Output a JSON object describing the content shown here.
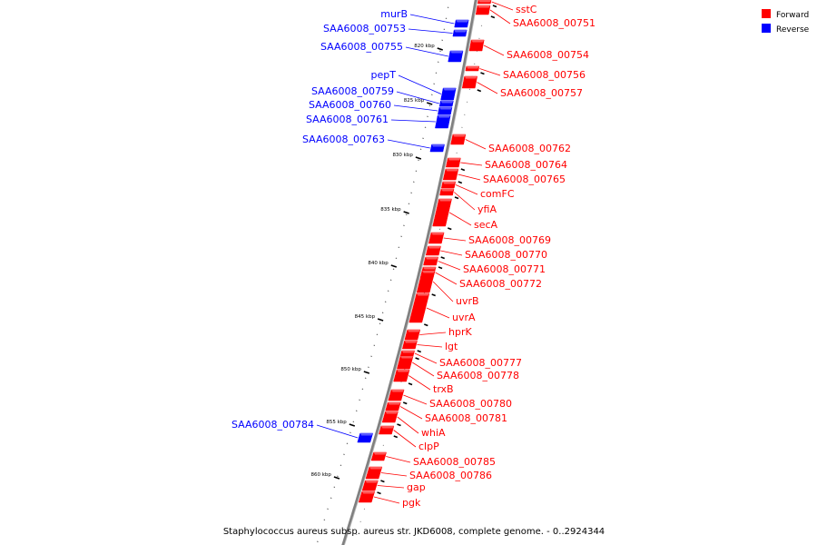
{
  "caption": "Staphylococcus aureus subsp. aureus str. JKD6008, complete genome. - 0..2924344",
  "legend": [
    {
      "label": "Forward",
      "color": "#ff0000"
    },
    {
      "label": "Reverse",
      "color": "#0000ff"
    }
  ],
  "colors": {
    "forward": "#ff0000",
    "reverse": "#0000ff",
    "backbone": "#808080"
  },
  "ticks": [
    "820 kbp",
    "825 kbp",
    "830 kbp",
    "835 kbp",
    "840 kbp",
    "845 kbp",
    "850 kbp",
    "855 kbp",
    "860 kbp"
  ],
  "reverse_genes": [
    {
      "label": "murB"
    },
    {
      "label": "SAA6008_00753"
    },
    {
      "label": "SAA6008_00755"
    },
    {
      "label": "pepT"
    },
    {
      "label": "SAA6008_00759"
    },
    {
      "label": "SAA6008_00760"
    },
    {
      "label": "SAA6008_00761"
    },
    {
      "label": "SAA6008_00763"
    },
    {
      "label": "SAA6008_00784"
    }
  ],
  "forward_genes": [
    {
      "label": "sstC"
    },
    {
      "label": "SAA6008_00751"
    },
    {
      "label": "SAA6008_00754"
    },
    {
      "label": "SAA6008_00756"
    },
    {
      "label": "SAA6008_00757"
    },
    {
      "label": "SAA6008_00762"
    },
    {
      "label": "SAA6008_00764"
    },
    {
      "label": "SAA6008_00765"
    },
    {
      "label": "comFC"
    },
    {
      "label": "yfiA"
    },
    {
      "label": "secA"
    },
    {
      "label": "SAA6008_00769"
    },
    {
      "label": "SAA6008_00770"
    },
    {
      "label": "SAA6008_00771"
    },
    {
      "label": "SAA6008_00772"
    },
    {
      "label": "uvrB"
    },
    {
      "label": "uvrA"
    },
    {
      "label": "hprK"
    },
    {
      "label": "lgt"
    },
    {
      "label": "SAA6008_00777"
    },
    {
      "label": "SAA6008_00778"
    },
    {
      "label": "trxB"
    },
    {
      "label": "SAA6008_00780"
    },
    {
      "label": "SAA6008_00781"
    },
    {
      "label": "whiA"
    },
    {
      "label": "clpP"
    },
    {
      "label": "SAA6008_00785"
    },
    {
      "label": "SAA6008_00786"
    },
    {
      "label": "gap"
    },
    {
      "label": "pgk"
    }
  ]
}
